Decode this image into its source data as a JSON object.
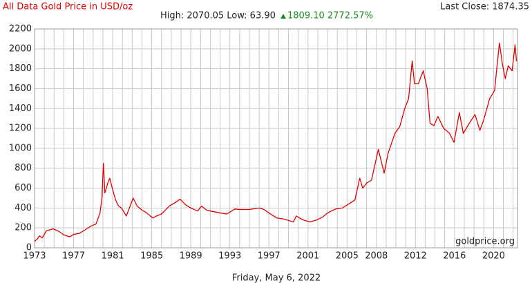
{
  "chart_data": {
    "type": "line",
    "title": "All Data Gold Price in USD/oz",
    "stats": "High: 2070.05 Low: 63.90",
    "change": "1809.10 2772.57%",
    "last_close": "Last Close: 1874.35",
    "watermark": "goldprice.org",
    "date": "Friday, May 6, 2022",
    "xlim": [
      1973,
      2022.45
    ],
    "ylim": [
      0,
      2200
    ],
    "xticks": [
      1973,
      1977,
      1981,
      1985,
      1989,
      1993,
      1997,
      2001,
      2005,
      2008,
      2012,
      2016,
      2020
    ],
    "x_minor_ticks": [
      1974,
      1975,
      1976,
      1978,
      1979,
      1980,
      1982,
      1983,
      1984,
      1986,
      1987,
      1988,
      1990,
      1991,
      1992,
      1994,
      1995,
      1996,
      1998,
      1999,
      2000,
      2002,
      2003,
      2004,
      2006,
      2007,
      2009,
      2010,
      2011,
      2013,
      2014,
      2015,
      2017,
      2018,
      2019,
      2021,
      2022
    ],
    "yticks": [
      0,
      200,
      400,
      600,
      800,
      1000,
      1200,
      1400,
      1600,
      1800,
      2000,
      2200
    ],
    "grid": true,
    "x": [
      1973.0,
      1973.3,
      1973.5,
      1973.8,
      1974.2,
      1974.9,
      1975.5,
      1976.0,
      1976.6,
      1977.0,
      1977.6,
      1978.0,
      1978.8,
      1979.3,
      1979.7,
      1979.9,
      1980.05,
      1980.2,
      1980.5,
      1980.7,
      1980.9,
      1981.3,
      1981.6,
      1981.9,
      1982.4,
      1982.9,
      1983.1,
      1983.5,
      1984.0,
      1984.5,
      1985.1,
      1985.5,
      1986.0,
      1986.8,
      1987.5,
      1987.9,
      1988.5,
      1989.0,
      1989.7,
      1990.1,
      1990.6,
      1991.0,
      1992.0,
      1992.7,
      1993.5,
      1994.0,
      1995.0,
      1996.0,
      1996.5,
      1997.0,
      1997.8,
      1998.5,
      1999.5,
      1999.8,
      2000.5,
      2001.2,
      2001.9,
      2002.5,
      2003.0,
      2003.8,
      2004.5,
      2005.0,
      2005.8,
      2006.3,
      2006.6,
      2007.0,
      2007.5,
      2008.0,
      2008.2,
      2008.8,
      2009.2,
      2009.9,
      2010.4,
      2010.9,
      2011.3,
      2011.67,
      2011.9,
      2012.3,
      2012.8,
      2013.2,
      2013.5,
      2013.9,
      2014.3,
      2014.9,
      2015.5,
      2015.95,
      2016.5,
      2016.9,
      2017.5,
      2018.1,
      2018.6,
      2019.0,
      2019.6,
      2020.1,
      2020.6,
      2020.9,
      2021.2,
      2021.5,
      2021.9,
      2022.2,
      2022.35
    ],
    "series": [
      {
        "color": "#e00000",
        "values": [
          65,
          90,
          120,
          100,
          170,
          190,
          165,
          130,
          110,
          135,
          145,
          170,
          220,
          240,
          350,
          500,
          850,
          550,
          650,
          700,
          620,
          480,
          420,
          400,
          320,
          450,
          500,
          420,
          380,
          350,
          300,
          320,
          340,
          420,
          460,
          490,
          430,
          400,
          370,
          420,
          380,
          370,
          350,
          340,
          390,
          385,
          385,
          400,
          385,
          350,
          300,
          290,
          260,
          320,
          280,
          260,
          280,
          310,
          350,
          390,
          400,
          430,
          480,
          700,
          600,
          650,
          680,
          900,
          990,
          750,
          950,
          1150,
          1220,
          1400,
          1500,
          1880,
          1650,
          1650,
          1780,
          1600,
          1250,
          1230,
          1320,
          1200,
          1150,
          1060,
          1360,
          1150,
          1250,
          1340,
          1180,
          1290,
          1500,
          1580,
          2060,
          1850,
          1700,
          1830,
          1780,
          2040,
          1875
        ]
      }
    ]
  }
}
